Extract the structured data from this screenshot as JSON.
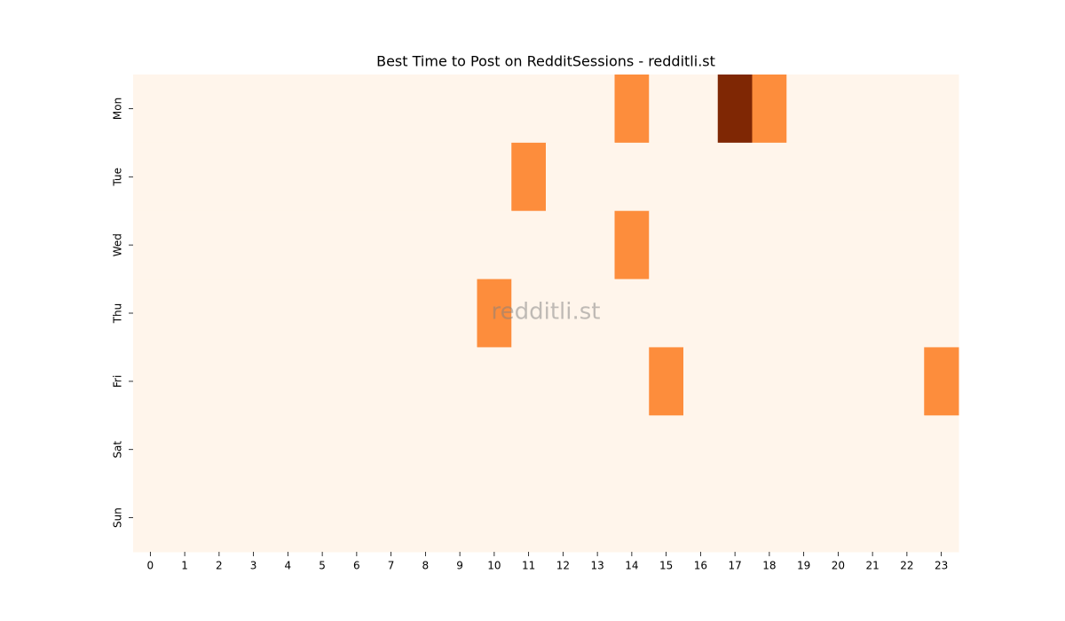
{
  "chart_data": {
    "type": "heatmap",
    "title": "Best Time to Post on RedditSessions - redditli.st",
    "watermark": "redditli.st",
    "x": [
      0,
      1,
      2,
      3,
      4,
      5,
      6,
      7,
      8,
      9,
      10,
      11,
      12,
      13,
      14,
      15,
      16,
      17,
      18,
      19,
      20,
      21,
      22,
      23
    ],
    "y": [
      "Mon",
      "Tue",
      "Wed",
      "Thu",
      "Fri",
      "Sat",
      "Sun"
    ],
    "values": [
      [
        0,
        0,
        0,
        0,
        0,
        0,
        0,
        0,
        0,
        0,
        0,
        0,
        0,
        0,
        1,
        0,
        0,
        2,
        1,
        0,
        0,
        0,
        0,
        0
      ],
      [
        0,
        0,
        0,
        0,
        0,
        0,
        0,
        0,
        0,
        0,
        0,
        1,
        0,
        0,
        0,
        0,
        0,
        0,
        0,
        0,
        0,
        0,
        0,
        0
      ],
      [
        0,
        0,
        0,
        0,
        0,
        0,
        0,
        0,
        0,
        0,
        0,
        0,
        0,
        0,
        1,
        0,
        0,
        0,
        0,
        0,
        0,
        0,
        0,
        0
      ],
      [
        0,
        0,
        0,
        0,
        0,
        0,
        0,
        0,
        0,
        0,
        1,
        0,
        0,
        0,
        0,
        0,
        0,
        0,
        0,
        0,
        0,
        0,
        0,
        0
      ],
      [
        0,
        0,
        0,
        0,
        0,
        0,
        0,
        0,
        0,
        0,
        0,
        0,
        0,
        0,
        0,
        1,
        0,
        0,
        0,
        0,
        0,
        0,
        0,
        1
      ],
      [
        0,
        0,
        0,
        0,
        0,
        0,
        0,
        0,
        0,
        0,
        0,
        0,
        0,
        0,
        0,
        0,
        0,
        0,
        0,
        0,
        0,
        0,
        0,
        0
      ],
      [
        0,
        0,
        0,
        0,
        0,
        0,
        0,
        0,
        0,
        0,
        0,
        0,
        0,
        0,
        0,
        0,
        0,
        0,
        0,
        0,
        0,
        0,
        0,
        0
      ]
    ],
    "colorscale": [
      "#fff5eb",
      "#fd8d3c",
      "#7f2704"
    ],
    "clim": [
      0,
      2
    ]
  }
}
